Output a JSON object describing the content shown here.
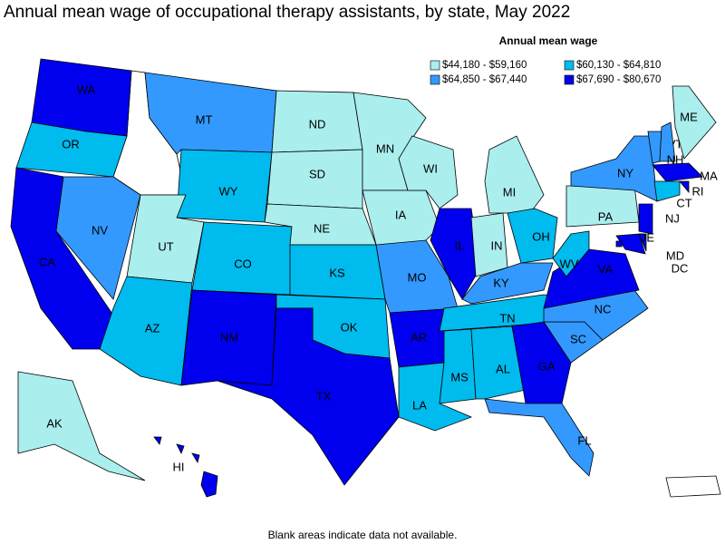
{
  "title": "Annual mean wage of occupational therapy assistants, by state, May 2022",
  "legend": {
    "title": "Annual mean wage",
    "items": [
      {
        "label": "$44,180 - $59,160",
        "color": "#aaeeee"
      },
      {
        "label": "$60,130 - $64,810",
        "color": "#00bbee"
      },
      {
        "label": "$64,850 - $67,440",
        "color": "#3399ff"
      },
      {
        "label": "$67,690 - $80,670",
        "color": "#0000ee"
      }
    ]
  },
  "states": [
    {
      "label": "WA",
      "color": "#0000ee"
    },
    {
      "label": "OR",
      "color": "#00bbee"
    },
    {
      "label": "CA",
      "color": "#0000ee"
    },
    {
      "label": "NV",
      "color": "#3399ff"
    },
    {
      "label": "MT",
      "color": "#3399ff"
    },
    {
      "label": "WY",
      "color": "#00bbee"
    },
    {
      "label": "UT",
      "color": "#aaeeee"
    },
    {
      "label": "AZ",
      "color": "#00bbee"
    },
    {
      "label": "CO",
      "color": "#00bbee"
    },
    {
      "label": "NM",
      "color": "#0000ee"
    },
    {
      "label": "ND",
      "color": "#aaeeee"
    },
    {
      "label": "SD",
      "color": "#aaeeee"
    },
    {
      "label": "NE",
      "color": "#aaeeee"
    },
    {
      "label": "KS",
      "color": "#00bbee"
    },
    {
      "label": "OK",
      "color": "#00bbee"
    },
    {
      "label": "TX",
      "color": "#0000ee"
    },
    {
      "label": "MN",
      "color": "#aaeeee"
    },
    {
      "label": "IA",
      "color": "#aaeeee"
    },
    {
      "label": "MO",
      "color": "#3399ff"
    },
    {
      "label": "AR",
      "color": "#0000ee"
    },
    {
      "label": "LA",
      "color": "#00bbee"
    },
    {
      "label": "WI",
      "color": "#aaeeee"
    },
    {
      "label": "IL",
      "color": "#0000ee"
    },
    {
      "label": "MI",
      "color": "#aaeeee"
    },
    {
      "label": "IN",
      "color": "#aaeeee"
    },
    {
      "label": "OH",
      "color": "#00bbee"
    },
    {
      "label": "KY",
      "color": "#3399ff"
    },
    {
      "label": "TN",
      "color": "#00bbee"
    },
    {
      "label": "MS",
      "color": "#00bbee"
    },
    {
      "label": "AL",
      "color": "#00bbee"
    },
    {
      "label": "GA",
      "color": "#0000ee"
    },
    {
      "label": "FL",
      "color": "#3399ff"
    },
    {
      "label": "SC",
      "color": "#3399ff"
    },
    {
      "label": "NC",
      "color": "#3399ff"
    },
    {
      "label": "VA",
      "color": "#0000ee"
    },
    {
      "label": "WV",
      "color": "#00bbee"
    },
    {
      "label": "PA",
      "color": "#aaeeee"
    },
    {
      "label": "NY",
      "color": "#3399ff"
    },
    {
      "label": "VT",
      "color": "#3399ff"
    },
    {
      "label": "NH",
      "color": "#3399ff"
    },
    {
      "label": "ME",
      "color": "#aaeeee"
    },
    {
      "label": "MA",
      "color": "#0000ee"
    },
    {
      "label": "RI",
      "color": "#0000ee"
    },
    {
      "label": "CT",
      "color": "#00bbee"
    },
    {
      "label": "NJ",
      "color": "#0000ee"
    },
    {
      "label": "DE",
      "color": "#0000ee"
    },
    {
      "label": "MD",
      "color": "#0000ee"
    },
    {
      "label": "DC",
      "color": "#0000ee"
    },
    {
      "label": "AK",
      "color": "#aaeeee"
    },
    {
      "label": "HI",
      "color": "#0000ee"
    }
  ],
  "note": "Blank areas indicate data not available."
}
